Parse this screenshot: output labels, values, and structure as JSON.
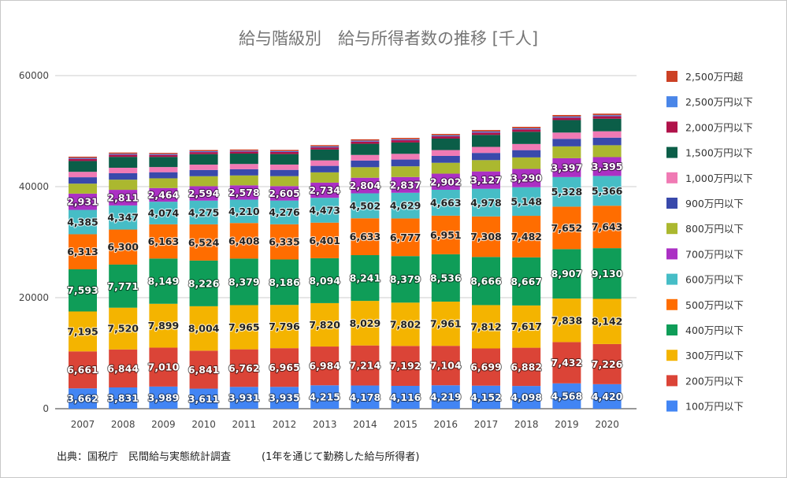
{
  "chart_data": {
    "type": "bar",
    "stacked": true,
    "title": "給与階級別　給与所得者数の推移 [千人]",
    "xlabel": "",
    "ylabel": "",
    "ylim": [
      0,
      60000
    ],
    "yticks": [
      0,
      20000,
      40000,
      60000
    ],
    "grid": true,
    "legend_position": "right",
    "categories": [
      "2007",
      "2008",
      "2009",
      "2010",
      "2011",
      "2012",
      "2013",
      "2014",
      "2015",
      "2016",
      "2017",
      "2018",
      "2019",
      "2020"
    ],
    "series": [
      {
        "name": "100万円以下",
        "color": "#4285f4",
        "labeled": true,
        "values": [
          3662,
          3831,
          3989,
          3611,
          3931,
          3935,
          4215,
          4178,
          4116,
          4219,
          4152,
          4098,
          4568,
          4420
        ]
      },
      {
        "name": "200万円以下",
        "color": "#db4437",
        "labeled": true,
        "values": [
          6661,
          6844,
          7010,
          6841,
          6762,
          6965,
          6984,
          7214,
          7192,
          7104,
          6699,
          6882,
          7432,
          7226
        ]
      },
      {
        "name": "300万円以下",
        "color": "#f4b400",
        "labeled": true,
        "values": [
          7195,
          7520,
          7899,
          8004,
          7965,
          7796,
          7820,
          8029,
          7802,
          7961,
          7812,
          7617,
          7838,
          8142
        ]
      },
      {
        "name": "400万円以下",
        "color": "#0f9d58",
        "labeled": true,
        "values": [
          7593,
          7771,
          8149,
          8226,
          8379,
          8186,
          8094,
          8241,
          8379,
          8536,
          8666,
          8667,
          8907,
          9130
        ]
      },
      {
        "name": "500万円以下",
        "color": "#ff6d00",
        "labeled": true,
        "values": [
          6313,
          6300,
          6163,
          6524,
          6408,
          6335,
          6401,
          6633,
          6777,
          6951,
          7308,
          7482,
          7652,
          7643
        ]
      },
      {
        "name": "600万円以下",
        "color": "#46bdc6",
        "labeled": true,
        "values": [
          4385,
          4347,
          4074,
          4275,
          4210,
          4276,
          4473,
          4502,
          4629,
          4663,
          4978,
          5148,
          5328,
          5366
        ]
      },
      {
        "name": "700万円以下",
        "color": "#ab30c4",
        "labeled": true,
        "values": [
          2931,
          2811,
          2464,
          2594,
          2578,
          2605,
          2734,
          2804,
          2837,
          2902,
          3127,
          3290,
          3397,
          3395
        ]
      },
      {
        "name": "800万円以下",
        "color": "#abb82f",
        "labeled": false,
        "values": [
          1800,
          1830,
          1750,
          1800,
          1780,
          1790,
          1850,
          1900,
          1930,
          1960,
          2040,
          2080,
          2130,
          2140
        ]
      },
      {
        "name": "900万円以下",
        "color": "#3949ab",
        "labeled": false,
        "values": [
          1150,
          1160,
          1100,
          1130,
          1120,
          1130,
          1170,
          1200,
          1220,
          1240,
          1290,
          1310,
          1350,
          1360
        ]
      },
      {
        "name": "1,000万円以下",
        "color": "#f07ab4",
        "labeled": false,
        "values": [
          980,
          990,
          930,
          960,
          950,
          960,
          990,
          1010,
          1030,
          1050,
          1090,
          1110,
          1140,
          1150
        ]
      },
      {
        "name": "1,500万円以下",
        "color": "#0b5e48",
        "labeled": false,
        "values": [
          1950,
          1960,
          1830,
          1890,
          1870,
          1890,
          1960,
          2010,
          2040,
          2070,
          2160,
          2200,
          2250,
          2260
        ]
      },
      {
        "name": "2,000万円以下",
        "color": "#b0124a",
        "labeled": false,
        "values": [
          390,
          390,
          360,
          370,
          370,
          375,
          390,
          400,
          410,
          415,
          430,
          440,
          455,
          455
        ]
      },
      {
        "name": "2,500万円以下",
        "color": "#4a86e8",
        "labeled": false,
        "values": [
          160,
          160,
          150,
          155,
          152,
          155,
          160,
          165,
          168,
          170,
          178,
          182,
          186,
          188
        ]
      },
      {
        "name": "2,500万円超",
        "color": "#cc4125",
        "labeled": false,
        "values": [
          230,
          230,
          210,
          215,
          215,
          220,
          230,
          240,
          245,
          250,
          260,
          265,
          270,
          275
        ]
      }
    ],
    "source_note": "出典：国税庁　民間給与実態統計調査　　　(1年を通じて勤務した給与所得者)"
  }
}
